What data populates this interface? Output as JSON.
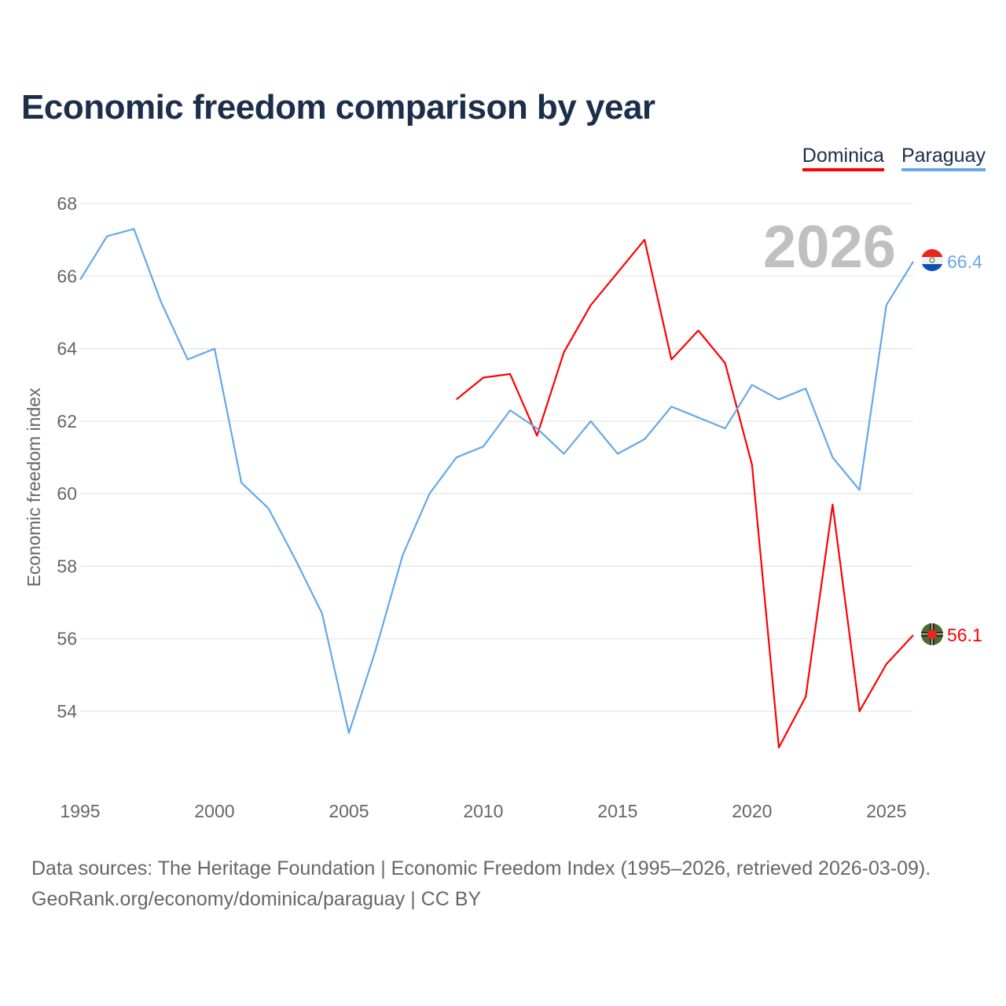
{
  "chart_data": {
    "type": "line",
    "title": "Economic freedom comparison by year",
    "ylabel": "Economic freedom index",
    "xlabel": "",
    "ylim": [
      52.4,
      68
    ],
    "xlim": [
      1995,
      2026
    ],
    "yticks": [
      54,
      56,
      58,
      60,
      62,
      64,
      66,
      68
    ],
    "xticks": [
      1995,
      2000,
      2005,
      2010,
      2015,
      2020,
      2025
    ],
    "grid": true,
    "legend_position": "top-right",
    "year_watermark": "2026",
    "series": [
      {
        "name": "Dominica",
        "color": "#ff0000",
        "end_label": "56.1",
        "flag": "dominica-flag",
        "x": [
          2009,
          2010,
          2011,
          2012,
          2013,
          2014,
          2015,
          2016,
          2017,
          2018,
          2019,
          2020,
          2021,
          2022,
          2023,
          2024,
          2025,
          2026
        ],
        "values": [
          62.6,
          63.2,
          63.3,
          61.6,
          63.9,
          65.2,
          66.1,
          67.0,
          63.7,
          64.5,
          63.6,
          60.8,
          53.0,
          54.4,
          59.7,
          54.0,
          55.3,
          56.1
        ]
      },
      {
        "name": "Paraguay",
        "color": "#64a8ea",
        "end_label": "66.4",
        "flag": "paraguay-flag",
        "x": [
          1995,
          1996,
          1997,
          1998,
          1999,
          2000,
          2001,
          2002,
          2003,
          2004,
          2005,
          2006,
          2007,
          2008,
          2009,
          2010,
          2011,
          2012,
          2013,
          2014,
          2015,
          2016,
          2017,
          2018,
          2019,
          2020,
          2021,
          2022,
          2023,
          2024,
          2025,
          2026
        ],
        "values": [
          65.9,
          67.1,
          67.3,
          65.3,
          63.7,
          64.0,
          60.3,
          59.6,
          58.2,
          56.7,
          53.4,
          55.7,
          58.3,
          60.0,
          61.0,
          61.3,
          62.3,
          61.8,
          61.1,
          62.0,
          61.1,
          61.5,
          62.4,
          62.1,
          61.8,
          63.0,
          62.6,
          62.9,
          61.0,
          60.1,
          65.2,
          66.4
        ]
      }
    ]
  },
  "footer": {
    "line1": "Data sources: The Heritage Foundation | Economic Freedom Index (1995–2026, retrieved 2026-03-09).",
    "line2": "GeoRank.org/economy/dominica/paraguay | CC BY"
  }
}
